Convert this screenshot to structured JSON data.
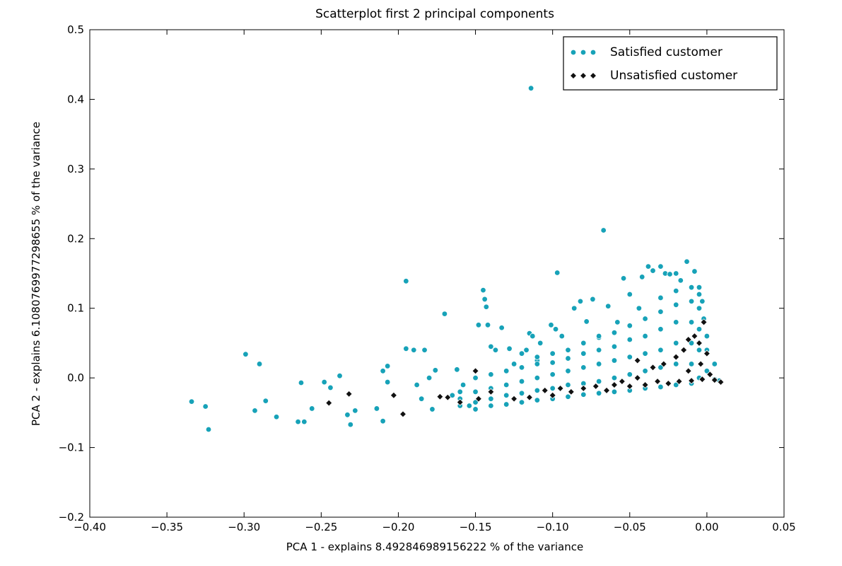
{
  "chart_data": {
    "type": "scatter",
    "title": "Scatterplot first 2 principal components",
    "x_label": "PCA 1 - explains 8.492846989156222 % of the variance",
    "y_label": "PCA 2 - explains 6.1080769977298655 % of the variance",
    "xlim": [
      -0.4,
      0.05
    ],
    "ylim": [
      -0.2,
      0.5
    ],
    "xticks": [
      {
        "value": -0.4,
        "label": "−0.40"
      },
      {
        "value": -0.35,
        "label": "−0.35"
      },
      {
        "value": -0.3,
        "label": "−0.30"
      },
      {
        "value": -0.25,
        "label": "−0.25"
      },
      {
        "value": -0.2,
        "label": "−0.20"
      },
      {
        "value": -0.15,
        "label": "−0.15"
      },
      {
        "value": -0.1,
        "label": "−0.10"
      },
      {
        "value": -0.05,
        "label": "−0.05"
      },
      {
        "value": 0,
        "label": "0.00"
      },
      {
        "value": 0.05,
        "label": "0.05"
      }
    ],
    "yticks": [
      {
        "value": -0.2,
        "label": "−0.2"
      },
      {
        "value": -0.1,
        "label": "−0.1"
      },
      {
        "value": 0,
        "label": "0.0"
      },
      0.1,
      0.2,
      0.3,
      0.4,
      0.5
    ],
    "grid": false,
    "legend": "upper right",
    "series": [
      {
        "name": "Satisfied customer",
        "color": "#17a2b8",
        "marker": "circle",
        "x": [
          -0.114,
          -0.067,
          -0.097,
          -0.195,
          -0.145,
          -0.299,
          -0.29,
          -0.334,
          -0.325,
          -0.323,
          -0.293,
          -0.286,
          -0.279,
          -0.265,
          -0.261,
          -0.263,
          -0.256,
          -0.248,
          -0.244,
          -0.238,
          -0.231,
          -0.233,
          -0.228,
          -0.214,
          -0.21,
          -0.207,
          -0.21,
          -0.207,
          -0.19,
          -0.195,
          -0.183,
          -0.188,
          -0.185,
          -0.18,
          -0.176,
          -0.17,
          -0.178,
          -0.165,
          -0.162,
          -0.158,
          -0.154,
          -0.148,
          -0.143,
          -0.142,
          -0.14,
          -0.137,
          -0.144,
          -0.133,
          -0.128,
          -0.125,
          -0.12,
          -0.115,
          -0.113,
          -0.117,
          -0.11,
          -0.108,
          -0.101,
          -0.098,
          -0.094,
          -0.09,
          -0.086,
          -0.082,
          -0.078,
          -0.074,
          -0.07,
          -0.064,
          -0.058,
          -0.054,
          -0.05,
          -0.044,
          -0.042,
          -0.038,
          -0.035,
          -0.03,
          -0.027,
          -0.024,
          -0.02,
          -0.017,
          -0.013,
          -0.008,
          -0.005,
          -0.003,
          -0.002,
          -0.16,
          -0.16,
          -0.16,
          -0.15,
          -0.15,
          -0.15,
          -0.15,
          -0.14,
          -0.14,
          -0.14,
          -0.14,
          -0.13,
          -0.13,
          -0.13,
          -0.13,
          -0.12,
          -0.12,
          -0.12,
          -0.12,
          -0.11,
          -0.11,
          -0.11,
          -0.11,
          -0.11,
          -0.1,
          -0.1,
          -0.1,
          -0.1,
          -0.1,
          -0.09,
          -0.09,
          -0.09,
          -0.09,
          -0.08,
          -0.08,
          -0.08,
          -0.08,
          -0.08,
          -0.07,
          -0.07,
          -0.07,
          -0.07,
          -0.07,
          -0.06,
          -0.06,
          -0.06,
          -0.06,
          -0.06,
          -0.05,
          -0.05,
          -0.05,
          -0.05,
          -0.05,
          -0.04,
          -0.04,
          -0.04,
          -0.04,
          -0.04,
          -0.03,
          -0.03,
          -0.03,
          -0.03,
          -0.03,
          -0.03,
          -0.02,
          -0.02,
          -0.02,
          -0.02,
          -0.02,
          -0.02,
          -0.01,
          -0.01,
          -0.01,
          -0.01,
          -0.01,
          -0.01,
          -0.005,
          -0.005,
          -0.005,
          -0.005,
          -0.005,
          0.0,
          0.0,
          0.0,
          0.005,
          0.005,
          0.008
        ],
        "values": [
          0.416,
          0.212,
          0.151,
          0.139,
          0.126,
          0.034,
          0.02,
          -0.034,
          -0.041,
          -0.074,
          -0.047,
          -0.033,
          -0.056,
          -0.063,
          -0.063,
          -0.007,
          -0.044,
          -0.006,
          -0.014,
          0.003,
          -0.067,
          -0.053,
          -0.047,
          -0.044,
          0.01,
          0.017,
          -0.062,
          -0.006,
          0.04,
          0.042,
          0.04,
          -0.01,
          -0.03,
          0.0,
          0.011,
          0.092,
          -0.045,
          -0.025,
          0.012,
          -0.01,
          -0.04,
          0.076,
          0.102,
          0.076,
          0.045,
          0.04,
          0.113,
          0.072,
          0.042,
          0.02,
          0.035,
          0.064,
          0.06,
          0.04,
          0.025,
          0.05,
          0.076,
          0.07,
          0.06,
          0.04,
          0.1,
          0.11,
          0.081,
          0.113,
          0.058,
          0.103,
          0.08,
          0.143,
          0.12,
          0.1,
          0.145,
          0.16,
          0.154,
          0.16,
          0.15,
          0.149,
          0.15,
          0.14,
          0.167,
          0.153,
          0.13,
          0.11,
          0.085,
          -0.04,
          -0.03,
          -0.02,
          -0.045,
          -0.035,
          -0.02,
          0.0,
          -0.04,
          -0.03,
          -0.015,
          0.005,
          -0.038,
          -0.025,
          -0.01,
          0.01,
          -0.035,
          -0.022,
          -0.005,
          0.015,
          -0.032,
          -0.018,
          0.0,
          0.02,
          0.03,
          -0.03,
          -0.015,
          0.005,
          0.022,
          0.035,
          -0.027,
          -0.01,
          0.01,
          0.028,
          -0.024,
          -0.008,
          0.015,
          0.035,
          0.05,
          -0.022,
          -0.005,
          0.02,
          0.04,
          0.06,
          -0.02,
          0.0,
          0.025,
          0.045,
          0.065,
          -0.018,
          0.005,
          0.03,
          0.055,
          0.075,
          -0.015,
          0.01,
          0.035,
          0.06,
          0.085,
          -0.013,
          0.015,
          0.04,
          0.07,
          0.095,
          0.115,
          -0.01,
          0.02,
          0.05,
          0.08,
          0.105,
          0.125,
          -0.008,
          0.02,
          0.05,
          0.08,
          0.11,
          0.13,
          0.0,
          0.04,
          0.07,
          0.1,
          0.12,
          0.01,
          0.04,
          0.06,
          -0.002,
          0.02,
          -0.004
        ]
      },
      {
        "name": "Unsatisfied customer",
        "color": "#111111",
        "marker": "diamond",
        "x": [
          -0.245,
          -0.232,
          -0.203,
          -0.197,
          -0.173,
          -0.168,
          -0.16,
          -0.15,
          -0.148,
          -0.14,
          -0.125,
          -0.115,
          -0.105,
          -0.1,
          -0.095,
          -0.088,
          -0.08,
          -0.072,
          -0.065,
          -0.06,
          -0.055,
          -0.05,
          -0.045,
          -0.04,
          -0.035,
          -0.032,
          -0.028,
          -0.025,
          -0.02,
          -0.018,
          -0.015,
          -0.012,
          -0.01,
          -0.008,
          -0.005,
          -0.004,
          -0.003,
          -0.002,
          0.0,
          0.002,
          0.005,
          0.009,
          -0.045,
          -0.012
        ],
        "values": [
          -0.036,
          -0.023,
          -0.025,
          -0.052,
          -0.027,
          -0.028,
          -0.035,
          0.01,
          -0.03,
          -0.02,
          -0.03,
          -0.028,
          -0.018,
          -0.025,
          -0.015,
          -0.02,
          -0.015,
          -0.012,
          -0.018,
          -0.01,
          -0.005,
          -0.012,
          0.0,
          -0.01,
          0.015,
          -0.005,
          0.02,
          -0.008,
          0.03,
          -0.005,
          0.04,
          0.01,
          -0.004,
          0.06,
          0.05,
          0.02,
          -0.002,
          0.08,
          0.035,
          0.005,
          -0.003,
          -0.006,
          0.025,
          0.055
        ]
      }
    ]
  }
}
